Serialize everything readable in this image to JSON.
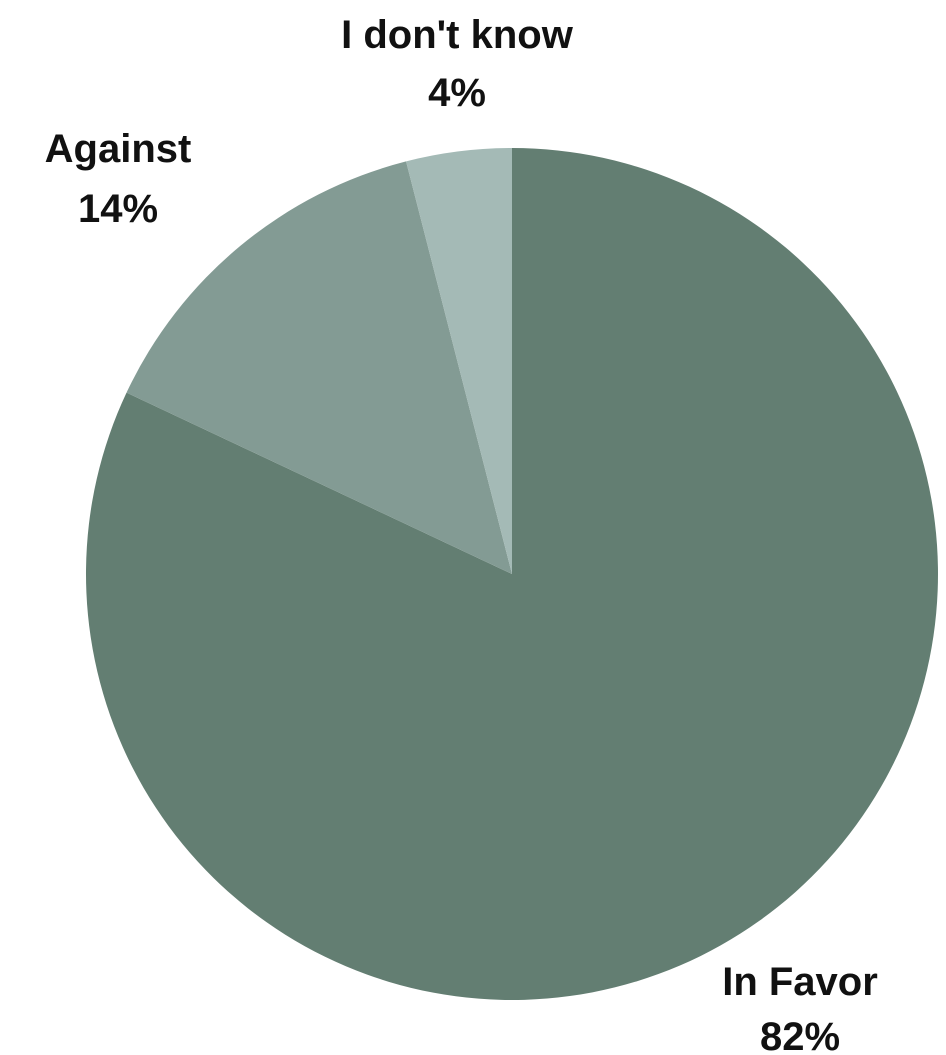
{
  "chart_data": {
    "type": "pie",
    "title": "",
    "start_angle_deg": 0,
    "direction": "clockwise",
    "slices": [
      {
        "label": "In Favor",
        "value": 82,
        "value_label": "82%",
        "color": "#637e72"
      },
      {
        "label": "Against",
        "value": 14,
        "value_label": "14%",
        "color": "#839b94"
      },
      {
        "label": "I don't know",
        "value": 4,
        "value_label": "4%",
        "color": "#a4bab6"
      }
    ],
    "legend": "none",
    "labels_position": "outside"
  }
}
